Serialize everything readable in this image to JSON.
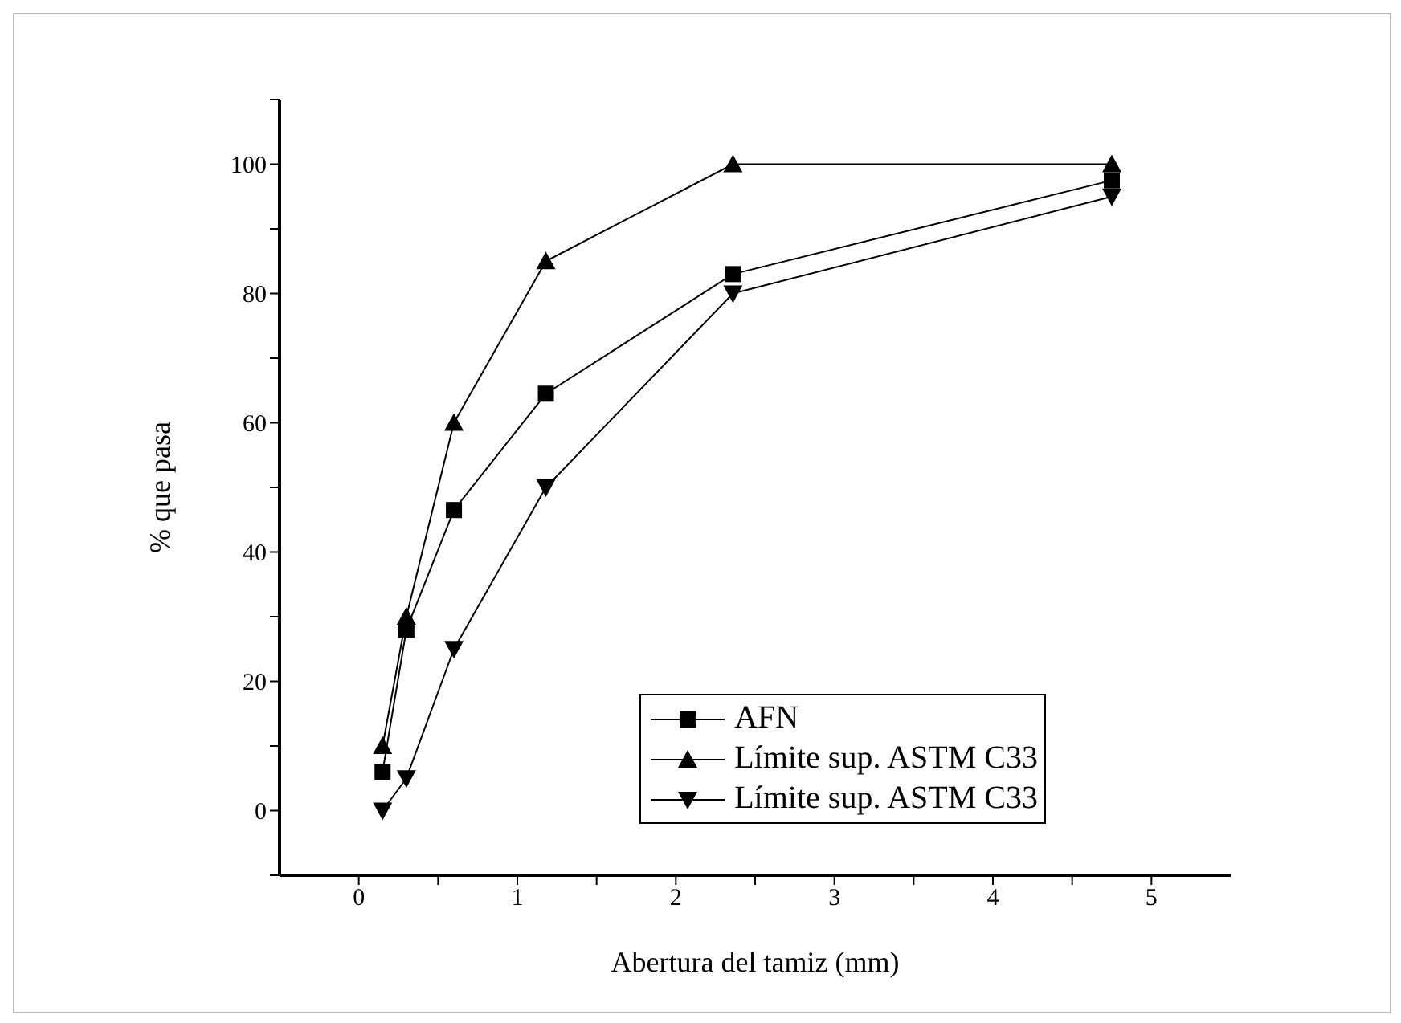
{
  "chart_data": {
    "type": "line",
    "xlabel": "Abertura del tamiz (mm)",
    "ylabel": "% que pasa",
    "xlim": [
      -0.5,
      5.5
    ],
    "xticks": [
      0,
      {
        "value": 0.5,
        "label": null
      },
      1,
      {
        "value": 1.5,
        "label": null
      },
      2,
      {
        "value": 2.5,
        "label": null
      },
      3,
      {
        "value": 3.5,
        "label": null
      },
      4,
      {
        "value": 4.5,
        "label": null
      },
      5
    ],
    "ylim": [
      -10,
      110
    ],
    "yticks": [
      {
        "value": -10,
        "label": null
      },
      0,
      {
        "value": 10,
        "label": null
      },
      20,
      {
        "value": 30,
        "label": null
      },
      40,
      {
        "value": 50,
        "label": null
      },
      60,
      {
        "value": 70,
        "label": null
      },
      80,
      {
        "value": 90,
        "label": null
      },
      100,
      {
        "value": 110,
        "label": null
      }
    ],
    "grid": false,
    "legend": "bottom right",
    "series": [
      {
        "name": "AFN",
        "color": "#000000",
        "marker": "square",
        "x": [
          0.15,
          0.3,
          0.6,
          1.18,
          2.36,
          4.75
        ],
        "values": [
          6,
          28,
          46.5,
          64.5,
          83,
          97.5
        ]
      },
      {
        "name": "Límite sup. ASTM C33",
        "color": "#000000",
        "marker": "triangle",
        "x": [
          0.15,
          0.3,
          0.6,
          1.18,
          2.36,
          4.75
        ],
        "values": [
          10,
          30,
          60,
          85,
          100,
          100
        ]
      },
      {
        "name": "Límite sup. ASTM C33",
        "color": "#000000",
        "marker": "triangle-down",
        "x": [
          0.15,
          0.3,
          0.6,
          1.18,
          2.36,
          4.75
        ],
        "values": [
          0,
          5,
          25,
          50,
          80,
          95
        ]
      }
    ]
  }
}
